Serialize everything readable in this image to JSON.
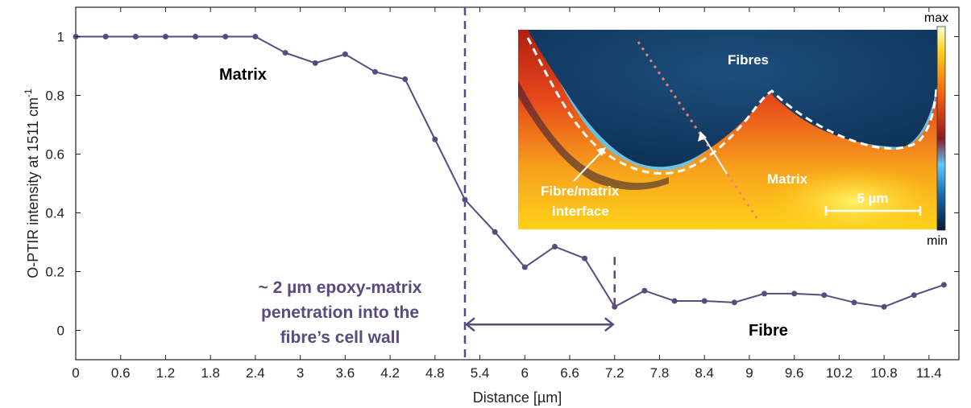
{
  "colors": {
    "series": "#5a4a7e",
    "annotation": "#5a4a7e",
    "axis": "#222222"
  },
  "chart_data": {
    "type": "line",
    "title": "",
    "xlabel": "Distance [µm]",
    "ylabel": "O-PTIR intensity at 1511 cm",
    "ylabel_superscript": "-1",
    "xlim": [
      0,
      11.8
    ],
    "ylim": [
      -0.1,
      1.1
    ],
    "x_ticks": [
      0,
      0.6,
      1.2,
      1.8,
      2.4,
      3,
      3.6,
      4.2,
      4.8,
      5.4,
      6,
      6.6,
      7.2,
      7.8,
      8.4,
      9,
      9.6,
      10.2,
      10.8,
      11.4
    ],
    "x_tick_labels": [
      "0",
      "0.6",
      "1.2",
      "1.8",
      "2.4",
      "3",
      "3.6",
      "4.2",
      "4.8",
      "5.4",
      "6",
      "6.6",
      "7.2",
      "7.8",
      "8.4",
      "9",
      "9.6",
      "10.2",
      "10.8",
      "11.4"
    ],
    "y_ticks": [
      0,
      0.2,
      0.4,
      0.6,
      0.8,
      1
    ],
    "y_tick_labels": [
      "0",
      "0.2",
      "0.4",
      "0.6",
      "0.8",
      "1"
    ],
    "grid": false,
    "series": [
      {
        "x": [
          0,
          0.4,
          0.8,
          1.2,
          1.6,
          2.0,
          2.4,
          2.8,
          3.2,
          3.6,
          4.0,
          4.4,
          4.8,
          5.2,
          5.6,
          6.0,
          6.4,
          6.8,
          7.2,
          7.6,
          8.0,
          8.4,
          8.8,
          9.2,
          9.6,
          10.0,
          10.4,
          10.8,
          11.2,
          11.6
        ],
        "values": [
          1.0,
          1.0,
          1.0,
          1.0,
          1.0,
          1.0,
          1.0,
          0.945,
          0.91,
          0.94,
          0.88,
          0.855,
          0.65,
          0.445,
          0.335,
          0.215,
          0.285,
          0.245,
          0.08,
          0.135,
          0.1,
          0.1,
          0.095,
          0.125,
          0.125,
          0.12,
          0.095,
          0.08,
          0.12,
          0.155
        ]
      }
    ],
    "reference_lines": [
      {
        "x": 5.2,
        "y_from": -0.1,
        "y_to": 1.1,
        "style": "dashed"
      },
      {
        "x": 7.2,
        "y_from": 0.08,
        "y_to": 0.25,
        "style": "dashed"
      }
    ],
    "double_arrow": {
      "x_from": 5.2,
      "x_to": 7.2,
      "y": 0.02
    },
    "annotations": {
      "matrix": "Matrix",
      "fibre": "Fibre",
      "penetration_line1": "~ 2 µm epoxy-matrix",
      "penetration_line2": "penetration into the",
      "penetration_line3": "fibre’s cell wall"
    },
    "inset": {
      "fibres_label": "Fibres",
      "matrix_label": "Matrix",
      "interface_line1": "Fibre/matrix",
      "interface_line2": "interface",
      "scale_bar_label": "5 µm",
      "colorbar_max": "max",
      "colorbar_min": "min"
    }
  }
}
